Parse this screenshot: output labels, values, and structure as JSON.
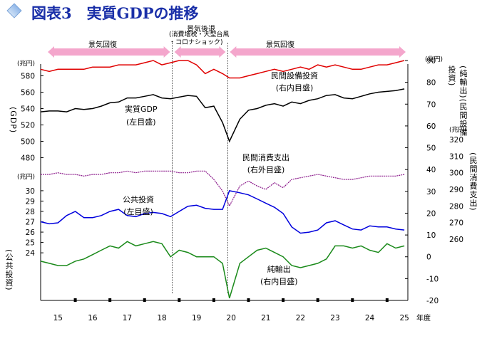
{
  "title": {
    "main": "図表3　実質GDPの推移",
    "color": "#1a2fa8"
  },
  "units": {
    "gdp": "(兆円)",
    "equip": "(兆円)",
    "consumption_left": "(兆円)",
    "consumption_right": "(兆円)"
  },
  "axis_titles": {
    "gdp": "(GDP)",
    "public": "(公共投資)",
    "right_inner": "(純輸出)(民間設備投資)",
    "right_outer": "(民間消費支出)",
    "year_unit": "年度"
  },
  "periods": [
    {
      "label": "景気回復",
      "from": 14.5,
      "to": 18.3
    },
    {
      "label": "景気後退",
      "sublabel": "(消費増税・大型台風\n・コロナショック)",
      "from": 18.3,
      "to": 19.9
    },
    {
      "label": "景気回復",
      "from": 19.9,
      "to": 25.1
    }
  ],
  "series_labels": {
    "gdp": "実質GDP\n(左目盛)",
    "equipment": "民間設備投資\n(右内目盛)",
    "consumption": "民間消費支出\n(右外目盛)",
    "public": "公共投資\n(左目盛)",
    "netexport": "純輸出\n(右内目盛)"
  },
  "colors": {
    "gdp": "#000000",
    "equipment": "#e00000",
    "consumption": "#8b1a8b",
    "public": "#0000dd",
    "netexport": "#1a8a1a",
    "period_arrow": "#f4a6cc"
  },
  "chart_data": {
    "type": "line",
    "x_ticks": [
      "15",
      "16",
      "17",
      "18",
      "19",
      "20",
      "21",
      "22",
      "23",
      "24",
      "25"
    ],
    "xlim": [
      14.5,
      25.1
    ],
    "left_axis_upper": {
      "label": "GDP",
      "ticks": [
        480,
        500,
        520,
        540,
        560,
        580
      ],
      "ylim": [
        470,
        590
      ]
    },
    "left_axis_lower": {
      "label": "公共投資",
      "ticks": [
        24,
        25,
        26,
        27,
        28,
        29,
        30
      ],
      "ylim": [
        19.4,
        30.2
      ]
    },
    "right_inner_axis": {
      "label": "純輸出 / 民間設備投資",
      "ticks": [
        -20,
        -10,
        0,
        10,
        20,
        30,
        40,
        50,
        60,
        70,
        80,
        90
      ],
      "ylim": [
        -20,
        90
      ]
    },
    "right_outer_axis": {
      "label": "民間消費支出",
      "ticks": [
        260,
        270,
        280,
        290,
        300,
        310,
        320
      ],
      "ylim": [
        260,
        320
      ]
    },
    "series": [
      {
        "name": "実質GDP",
        "axis": "left_upper",
        "x": [
          14.5,
          14.75,
          15.0,
          15.25,
          15.5,
          15.75,
          16.0,
          16.25,
          16.5,
          16.75,
          17.0,
          17.25,
          17.5,
          17.75,
          18.0,
          18.25,
          18.5,
          18.75,
          19.0,
          19.25,
          19.5,
          19.75,
          19.95,
          20.25,
          20.5,
          20.75,
          21.0,
          21.25,
          21.5,
          21.75,
          22.0,
          22.25,
          22.5,
          22.75,
          23.0,
          23.25,
          23.5,
          23.75,
          24.0,
          24.25,
          24.5,
          24.75,
          25.0
        ],
        "values": [
          536,
          537,
          537,
          536,
          540,
          539,
          540,
          543,
          547,
          548,
          553,
          553,
          555,
          557,
          553,
          552,
          554,
          556,
          555,
          541,
          543,
          523,
          500,
          527,
          538,
          540,
          544,
          546,
          543,
          548,
          546,
          550,
          552,
          556,
          557,
          553,
          552,
          555,
          558,
          560,
          561,
          562,
          564
        ]
      },
      {
        "name": "民間設備投資",
        "axis": "right_inner",
        "x": [
          14.5,
          14.75,
          15.0,
          15.25,
          15.5,
          15.75,
          16.0,
          16.25,
          16.5,
          16.75,
          17.0,
          17.25,
          17.5,
          17.75,
          18.0,
          18.25,
          18.5,
          18.75,
          19.0,
          19.25,
          19.5,
          19.75,
          19.95,
          20.25,
          20.5,
          20.75,
          21.0,
          21.25,
          21.5,
          21.75,
          22.0,
          22.25,
          22.5,
          22.75,
          23.0,
          23.25,
          23.5,
          23.75,
          24.0,
          24.25,
          24.5,
          24.75,
          25.0
        ],
        "values": [
          86,
          85,
          86,
          86,
          86,
          86,
          87,
          87,
          87,
          88,
          88,
          88,
          89,
          90,
          88,
          89,
          90,
          90,
          88,
          84,
          86,
          84,
          82,
          82,
          83,
          84,
          85,
          86,
          85,
          86,
          87,
          86,
          88,
          87,
          88,
          87,
          86,
          86,
          87,
          88,
          88,
          89,
          90
        ]
      },
      {
        "name": "民間消費支出",
        "axis": "right_outer",
        "x": [
          14.5,
          14.75,
          15.0,
          15.25,
          15.5,
          15.75,
          16.0,
          16.25,
          16.5,
          16.75,
          17.0,
          17.25,
          17.5,
          17.75,
          18.0,
          18.25,
          18.5,
          18.75,
          19.0,
          19.25,
          19.5,
          19.75,
          19.95,
          20.25,
          20.5,
          20.75,
          21.0,
          21.25,
          21.5,
          21.75,
          22.0,
          22.25,
          22.5,
          22.75,
          23.0,
          23.25,
          23.5,
          23.75,
          24.0,
          24.25,
          24.5,
          24.75,
          25.0
        ],
        "values": [
          299,
          299,
          300,
          299,
          299,
          298,
          299,
          299,
          300,
          300,
          301,
          300,
          301,
          301,
          301,
          301,
          300,
          300,
          301,
          301,
          296,
          289,
          280,
          292,
          295,
          292,
          290,
          294,
          291,
          296,
          297,
          298,
          299,
          298,
          297,
          296,
          296,
          297,
          298,
          298,
          298,
          298,
          299
        ]
      },
      {
        "name": "公共投資",
        "axis": "left_lower",
        "x": [
          14.5,
          14.75,
          15.0,
          15.25,
          15.5,
          15.75,
          16.0,
          16.25,
          16.5,
          16.75,
          17.0,
          17.25,
          17.5,
          17.75,
          18.0,
          18.25,
          18.5,
          18.75,
          19.0,
          19.25,
          19.5,
          19.75,
          19.95,
          20.25,
          20.5,
          20.75,
          21.0,
          21.25,
          21.5,
          21.75,
          22.0,
          22.25,
          22.5,
          22.75,
          23.0,
          23.25,
          23.5,
          23.75,
          24.0,
          24.25,
          24.5,
          24.75,
          25.0
        ],
        "values": [
          27.0,
          26.8,
          26.9,
          27.6,
          28.0,
          27.4,
          27.4,
          27.6,
          28.0,
          28.2,
          27.6,
          27.5,
          27.8,
          27.9,
          27.8,
          27.5,
          28.0,
          28.5,
          28.6,
          28.3,
          28.2,
          28.2,
          30.0,
          29.8,
          29.6,
          29.2,
          28.8,
          28.4,
          27.8,
          26.5,
          25.9,
          26.0,
          26.2,
          26.9,
          27.1,
          26.7,
          26.3,
          26.2,
          26.6,
          26.5,
          26.5,
          26.3,
          26.2
        ]
      },
      {
        "name": "純輸出",
        "axis": "right_inner",
        "x": [
          14.5,
          14.75,
          15.0,
          15.25,
          15.5,
          15.75,
          16.0,
          16.25,
          16.5,
          16.75,
          17.0,
          17.25,
          17.5,
          17.75,
          18.0,
          18.25,
          18.5,
          18.75,
          19.0,
          19.25,
          19.5,
          19.75,
          19.95,
          20.25,
          20.5,
          20.75,
          21.0,
          21.25,
          21.5,
          21.75,
          22.0,
          22.25,
          22.5,
          22.75,
          23.0,
          23.25,
          23.5,
          23.75,
          24.0,
          24.25,
          24.5,
          24.75,
          25.0
        ],
        "values": [
          -2,
          -3,
          -4,
          -4,
          -2,
          -1,
          1,
          3,
          5,
          4,
          7,
          5,
          6,
          7,
          6,
          0,
          3,
          2,
          0,
          0,
          0,
          -3,
          -19,
          -3,
          0,
          3,
          4,
          2,
          0,
          -4,
          -5,
          -4,
          -3,
          -1,
          5,
          5,
          4,
          5,
          3,
          2,
          6,
          4,
          5
        ]
      }
    ]
  }
}
